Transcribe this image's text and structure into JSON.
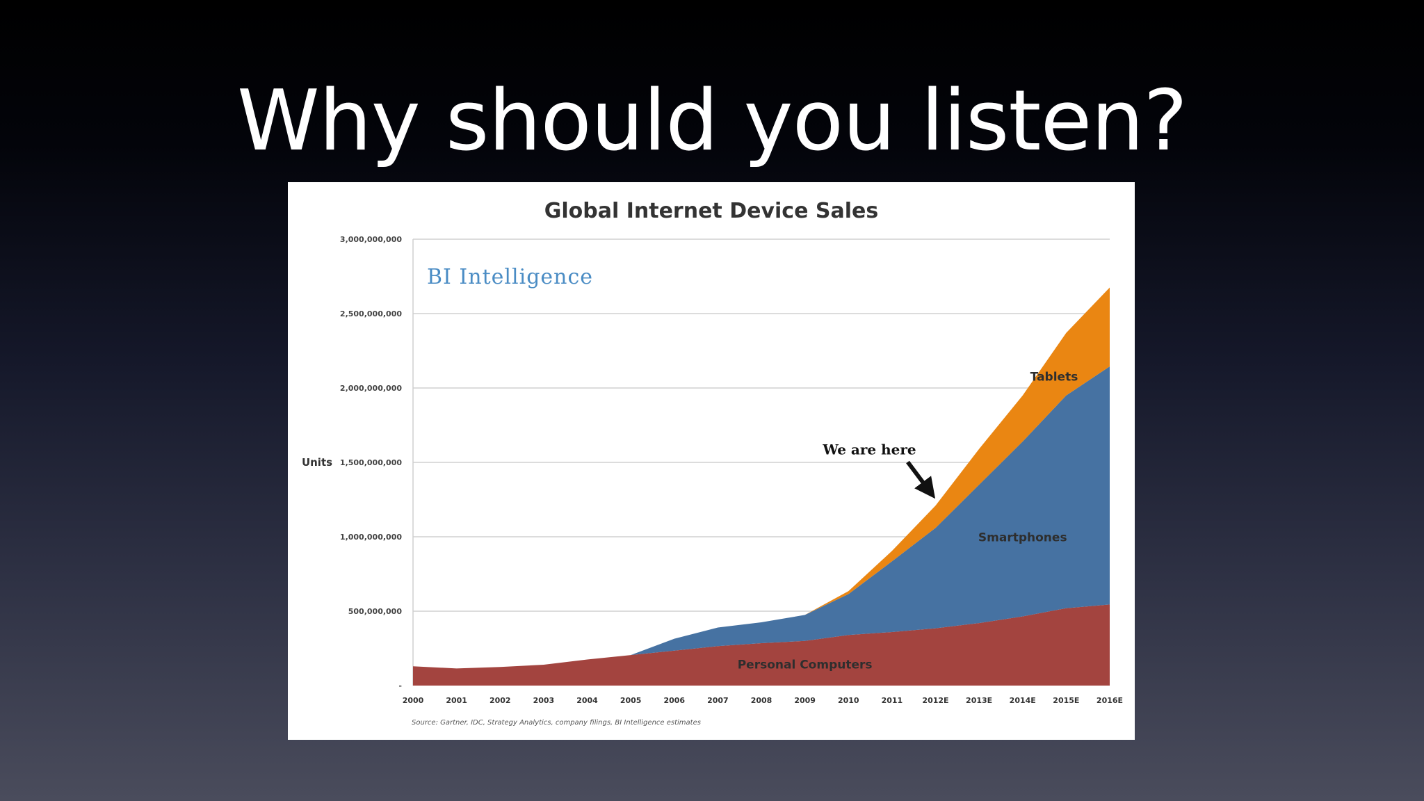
{
  "slide": {
    "title": "Why should you listen?"
  },
  "chart_data": {
    "type": "area",
    "stacked": true,
    "title": "Global Internet Device Sales",
    "brand": "BI Intelligence",
    "ylabel": "Units",
    "xlabel": "",
    "ylim": [
      0,
      3000000000
    ],
    "y_ticks": [
      {
        "value": 0,
        "label": "-"
      },
      {
        "value": 500000000,
        "label": "500,000,000"
      },
      {
        "value": 1000000000,
        "label": "1,000,000,000"
      },
      {
        "value": 1500000000,
        "label": "1,500,000,000"
      },
      {
        "value": 2000000000,
        "label": "2,000,000,000"
      },
      {
        "value": 2500000000,
        "label": "2,500,000,000"
      },
      {
        "value": 3000000000,
        "label": "3,000,000,000"
      }
    ],
    "grid": true,
    "categories": [
      "2000",
      "2001",
      "2002",
      "2003",
      "2004",
      "2005",
      "2006",
      "2007",
      "2008",
      "2009",
      "2010",
      "2011",
      "2012E",
      "2013E",
      "2014E",
      "2015E",
      "2016E"
    ],
    "series": [
      {
        "name": "Personal Computers",
        "color": "#a3443f",
        "values": [
          130000000,
          115000000,
          125000000,
          140000000,
          175000000,
          205000000,
          235000000,
          265000000,
          285000000,
          300000000,
          340000000,
          360000000,
          385000000,
          420000000,
          465000000,
          520000000,
          545000000
        ]
      },
      {
        "name": "Smartphones",
        "color": "#4672a2",
        "values": [
          0,
          0,
          0,
          0,
          0,
          0,
          80000000,
          125000000,
          140000000,
          175000000,
          275000000,
          475000000,
          675000000,
          930000000,
          1175000000,
          1430000000,
          1600000000
        ]
      },
      {
        "name": "Tablets",
        "color": "#ea8612",
        "values": [
          0,
          0,
          0,
          0,
          0,
          0,
          0,
          0,
          0,
          0,
          20000000,
          70000000,
          150000000,
          240000000,
          310000000,
          420000000,
          530000000
        ]
      }
    ],
    "series_label_positions": [
      {
        "name": "Personal Computers",
        "category": "2009",
        "value": 115000000
      },
      {
        "name": "Smartphones",
        "category": "2014E",
        "value": 970000000
      },
      {
        "name": "Tablets",
        "category": "2016E",
        "value": 2050000000
      }
    ],
    "annotation": {
      "text": "We are here",
      "category": "2012E",
      "value": 1250000000
    },
    "source": "Source: Gartner, IDC, Strategy Analytics, company filings, BI Intelligence estimates"
  }
}
